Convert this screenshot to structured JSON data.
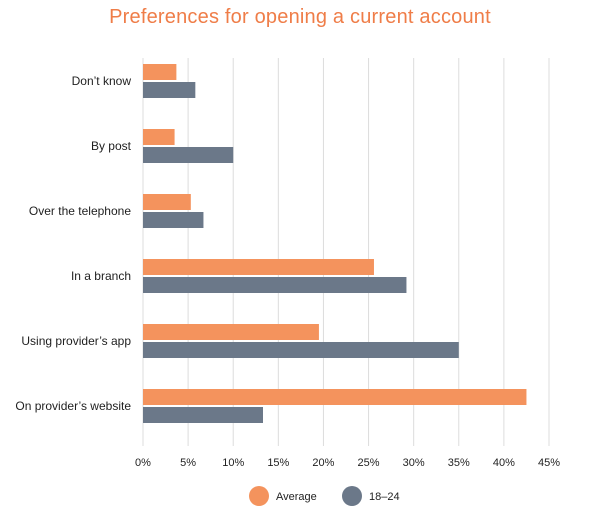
{
  "chart_data": {
    "type": "bar",
    "orientation": "horizontal",
    "title": "Preferences for opening a current account",
    "categories": [
      "Don’t know",
      "By post",
      "Over the telephone",
      "In a branch",
      "Using provider’s app",
      "On provider’s website"
    ],
    "series": [
      {
        "name": "Average",
        "color": "#f4935d",
        "values": [
          3.7,
          3.5,
          5.3,
          25.6,
          19.5,
          42.5
        ]
      },
      {
        "name": "18–24",
        "color": "#6b7889",
        "values": [
          5.8,
          10.0,
          6.7,
          29.2,
          35.0,
          13.3
        ]
      }
    ],
    "xlim": [
      0,
      45
    ],
    "xticks": [
      0,
      5,
      10,
      15,
      20,
      25,
      30,
      35,
      40,
      45
    ],
    "xtick_labels": [
      "0%",
      "5%",
      "10%",
      "15%",
      "20%",
      "25%",
      "30%",
      "35%",
      "40%",
      "45%"
    ],
    "xlabel": "",
    "ylabel": "",
    "grid": "vertical",
    "legend_position": "bottom"
  }
}
